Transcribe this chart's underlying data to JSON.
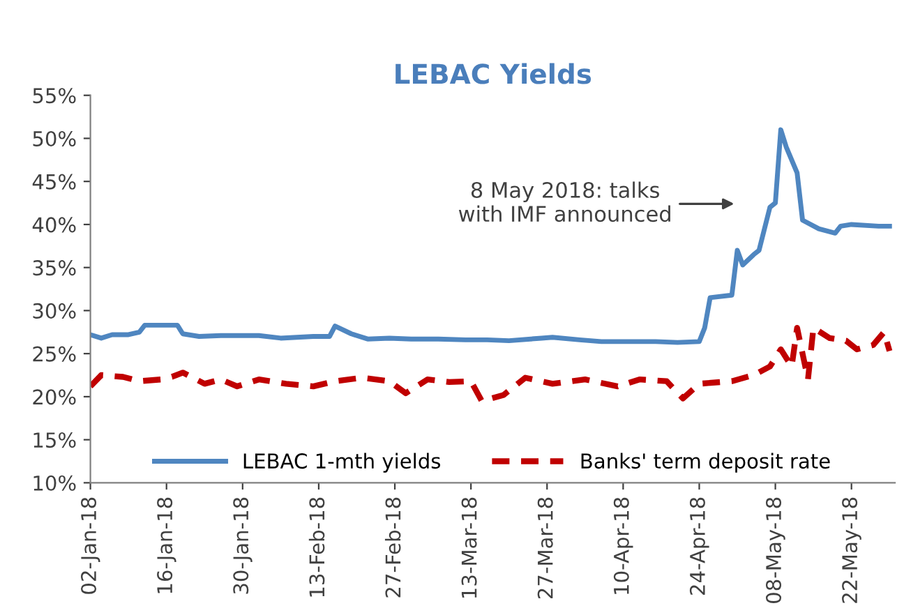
{
  "chart_data": {
    "type": "line",
    "title": "LEBAC Yields",
    "ylim": [
      10,
      55
    ],
    "yticks": [
      {
        "value": 10,
        "label": "10%"
      },
      {
        "value": 15,
        "label": "15%"
      },
      {
        "value": 20,
        "label": "20%"
      },
      {
        "value": 25,
        "label": "25%"
      },
      {
        "value": 30,
        "label": "30%"
      },
      {
        "value": 35,
        "label": "35%"
      },
      {
        "value": 40,
        "label": "40%"
      },
      {
        "value": 45,
        "label": "45%"
      },
      {
        "value": 50,
        "label": "50%"
      },
      {
        "value": 55,
        "label": "55%"
      }
    ],
    "xlim": [
      "2018-01-02",
      "2018-05-30"
    ],
    "xticks": [
      {
        "value": "2018-01-02",
        "label": "02-Jan-18"
      },
      {
        "value": "2018-01-16",
        "label": "16-Jan-18"
      },
      {
        "value": "2018-01-30",
        "label": "30-Jan-18"
      },
      {
        "value": "2018-02-13",
        "label": "13-Feb-18"
      },
      {
        "value": "2018-02-27",
        "label": "27-Feb-18"
      },
      {
        "value": "2018-03-13",
        "label": "13-Mar-18"
      },
      {
        "value": "2018-03-27",
        "label": "27-Mar-18"
      },
      {
        "value": "2018-04-10",
        "label": "10-Apr-18"
      },
      {
        "value": "2018-04-24",
        "label": "24-Apr-18"
      },
      {
        "value": "2018-05-08",
        "label": "08-May-18"
      },
      {
        "value": "2018-05-22",
        "label": "22-May-18"
      }
    ],
    "grid": false,
    "legend": "bottom",
    "series": [
      {
        "name": "LEBAC 1-mth yields",
        "color": "#4f86c0",
        "line_style": "solid",
        "x": [
          "2018-01-02",
          "2018-01-04",
          "2018-01-06",
          "2018-01-09",
          "2018-01-11",
          "2018-01-12",
          "2018-01-18",
          "2018-01-19",
          "2018-01-22",
          "2018-01-26",
          "2018-02-02",
          "2018-02-06",
          "2018-02-12",
          "2018-02-15",
          "2018-02-16",
          "2018-02-19",
          "2018-02-22",
          "2018-02-26",
          "2018-03-02",
          "2018-03-07",
          "2018-03-12",
          "2018-03-16",
          "2018-03-20",
          "2018-03-26",
          "2018-03-28",
          "2018-04-02",
          "2018-04-06",
          "2018-04-12",
          "2018-04-16",
          "2018-04-20",
          "2018-04-24",
          "2018-04-25",
          "2018-04-26",
          "2018-04-30",
          "2018-05-01",
          "2018-05-02",
          "2018-05-04",
          "2018-05-05",
          "2018-05-07",
          "2018-05-08",
          "2018-05-09",
          "2018-05-10",
          "2018-05-12",
          "2018-05-13",
          "2018-05-16",
          "2018-05-19",
          "2018-05-20",
          "2018-05-22",
          "2018-05-27",
          "2018-05-29"
        ],
        "values": [
          27.2,
          26.8,
          27.2,
          27.2,
          27.5,
          28.3,
          28.3,
          27.3,
          27.0,
          27.1,
          27.1,
          26.8,
          27.0,
          27.0,
          28.2,
          27.3,
          26.7,
          26.8,
          26.7,
          26.7,
          26.6,
          26.6,
          26.5,
          26.8,
          26.9,
          26.6,
          26.4,
          26.4,
          26.4,
          26.3,
          26.4,
          28.0,
          31.5,
          31.8,
          37.0,
          35.3,
          36.5,
          37.0,
          42.0,
          42.5,
          51.0,
          49.0,
          46.0,
          40.5,
          39.5,
          39.0,
          39.8,
          40.0,
          39.8,
          39.8
        ]
      },
      {
        "name": "Banks' term deposit rate",
        "color": "#c00000",
        "line_style": "dashed",
        "x": [
          "2018-01-02",
          "2018-01-04",
          "2018-01-08",
          "2018-01-11",
          "2018-01-15",
          "2018-01-17",
          "2018-01-19",
          "2018-01-23",
          "2018-01-26",
          "2018-01-29",
          "2018-02-02",
          "2018-02-07",
          "2018-02-12",
          "2018-02-16",
          "2018-02-21",
          "2018-02-26",
          "2018-03-01",
          "2018-03-05",
          "2018-03-09",
          "2018-03-13",
          "2018-03-15",
          "2018-03-19",
          "2018-03-23",
          "2018-03-28",
          "2018-04-03",
          "2018-04-09",
          "2018-04-13",
          "2018-04-18",
          "2018-04-21",
          "2018-04-24",
          "2018-04-30",
          "2018-05-04",
          "2018-05-07",
          "2018-05-09",
          "2018-05-11",
          "2018-05-12",
          "2018-05-14",
          "2018-05-15",
          "2018-05-18",
          "2018-05-21",
          "2018-05-23",
          "2018-05-26",
          "2018-05-28",
          "2018-05-29"
        ],
        "values": [
          21.2,
          22.5,
          22.3,
          21.8,
          22.0,
          22.3,
          22.8,
          21.5,
          22.0,
          21.2,
          22.0,
          21.5,
          21.2,
          21.8,
          22.2,
          21.8,
          20.4,
          22.0,
          21.7,
          21.8,
          19.5,
          20.2,
          22.2,
          21.5,
          22.0,
          21.2,
          22.0,
          21.8,
          19.8,
          21.5,
          21.8,
          22.5,
          23.5,
          25.5,
          23.5,
          28.0,
          22.0,
          28.0,
          26.8,
          26.5,
          25.5,
          26.0,
          27.5,
          25.3
        ]
      }
    ],
    "annotations": [
      "8 May 2018: talks\nwith IMF announced"
    ]
  }
}
